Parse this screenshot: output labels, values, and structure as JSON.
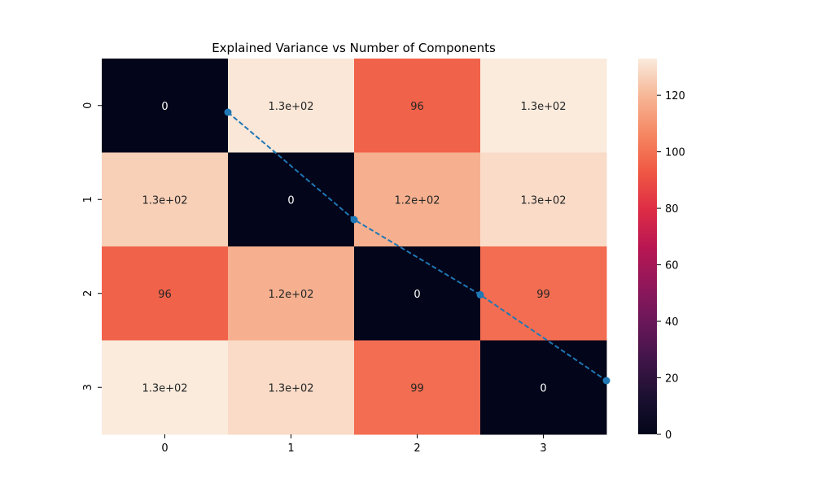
{
  "chart_data": {
    "type": "heatmap",
    "title": "Explained Variance vs Number of Components",
    "xlabel": "",
    "ylabel": "",
    "x_tick_labels": [
      "0",
      "1",
      "2",
      "3"
    ],
    "y_tick_labels": [
      "0",
      "1",
      "2",
      "3"
    ],
    "values": [
      [
        0,
        132,
        96,
        133
      ],
      [
        126,
        0,
        118,
        129
      ],
      [
        96,
        118,
        0,
        99
      ],
      [
        133,
        129,
        99,
        0
      ]
    ],
    "annotations": [
      [
        "0",
        "1.3e+02",
        "96",
        "1.3e+02"
      ],
      [
        "1.3e+02",
        "0",
        "1.2e+02",
        "1.3e+02"
      ],
      [
        "96",
        "1.2e+02",
        "0",
        "99"
      ],
      [
        "1.3e+02",
        "1.3e+02",
        "99",
        "0"
      ]
    ],
    "colorbar": {
      "vmin": 0,
      "vmax": 133,
      "ticks": [
        0,
        20,
        40,
        60,
        80,
        100,
        120
      ],
      "tick_labels": [
        "0",
        "20",
        "40",
        "60",
        "80",
        "100",
        "120"
      ],
      "colormap": "rocket"
    },
    "overlay_line": {
      "type": "line",
      "style": "dashed",
      "marker": "circle",
      "color": "#1f77b4",
      "x": [
        1,
        2,
        3,
        4
      ],
      "y": [
        0.995,
        0.985,
        0.978,
        0.97
      ]
    }
  }
}
